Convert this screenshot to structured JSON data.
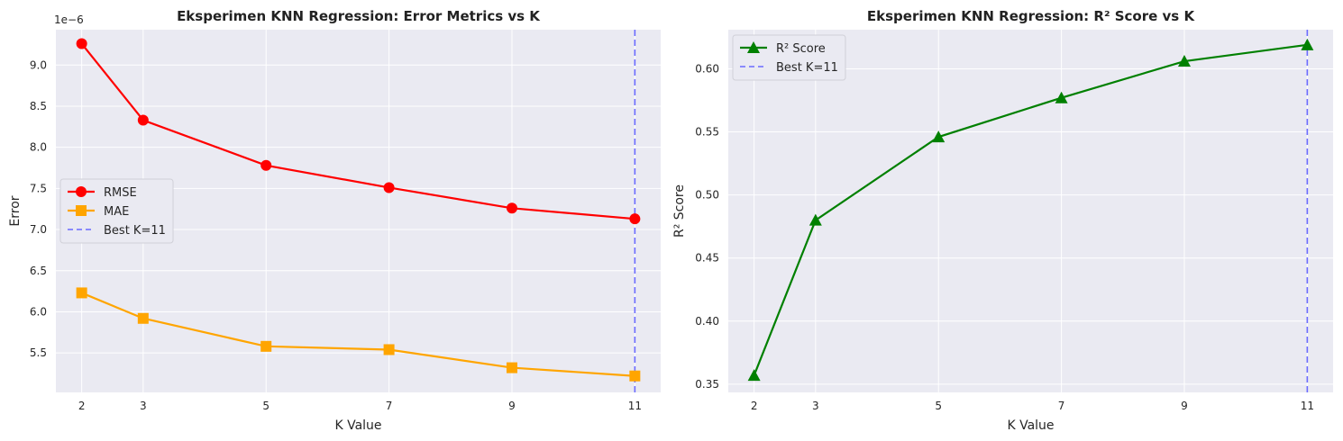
{
  "chart_data": [
    {
      "type": "line",
      "title": "Eksperimen KNN Regression: Error Metrics vs K",
      "xlabel": "K Value",
      "ylabel": "Error",
      "offset_label": "1e−6",
      "x": [
        2,
        3,
        5,
        7,
        9,
        11
      ],
      "xticks": [
        "2",
        "3",
        "5",
        "7",
        "9",
        "11"
      ],
      "yticks": [
        "5.5",
        "6.0",
        "6.5",
        "7.0",
        "7.5",
        "8.0",
        "8.5",
        "9.0"
      ],
      "ylim": [
        5.02,
        9.43
      ],
      "series": [
        {
          "name": "RMSE",
          "marker": "circle",
          "color": "#ff0000",
          "values": [
            9.26,
            8.33,
            7.78,
            7.51,
            7.26,
            7.13
          ]
        },
        {
          "name": "MAE",
          "marker": "square",
          "color": "#ffa500",
          "values": [
            6.23,
            5.92,
            5.58,
            5.54,
            5.32,
            5.22
          ]
        }
      ],
      "vline": {
        "x": 11,
        "label": "Best K=11",
        "color": "#6b6bff"
      },
      "legend": "center-left",
      "grid": true
    },
    {
      "type": "line",
      "title": "Eksperimen KNN Regression: R² Score vs K",
      "xlabel": "K Value",
      "ylabel": "R² Score",
      "x": [
        2,
        3,
        5,
        7,
        9,
        11
      ],
      "xticks": [
        "2",
        "3",
        "5",
        "7",
        "9",
        "11"
      ],
      "yticks": [
        "0.35",
        "0.40",
        "0.45",
        "0.50",
        "0.55",
        "0.60"
      ],
      "ylim": [
        0.3435,
        0.631
      ],
      "series": [
        {
          "name": "R² Score",
          "marker": "triangle",
          "color": "#008000",
          "values": [
            0.357,
            0.48,
            0.546,
            0.577,
            0.606,
            0.619
          ]
        }
      ],
      "vline": {
        "x": 11,
        "label": "Best K=11",
        "color": "#6b6bff"
      },
      "legend": "top-left",
      "grid": true
    }
  ]
}
